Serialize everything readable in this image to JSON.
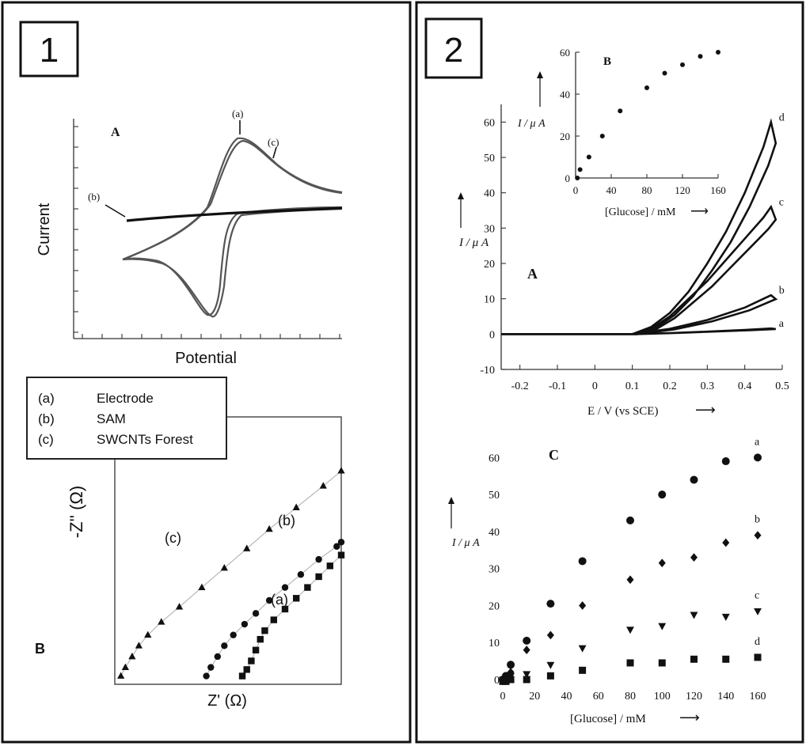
{
  "panel_labels": [
    "1",
    "2"
  ],
  "chart_data": [
    {
      "id": "cv",
      "type": "line",
      "title": "A",
      "xlabel": "Potential",
      "ylabel": "Current",
      "series": [
        {
          "name": "(a)",
          "description_visible": false
        },
        {
          "name": "(b)"
        },
        {
          "name": "(c)"
        }
      ]
    },
    {
      "id": "nyquist",
      "type": "scatter",
      "title": "B",
      "xlabel": "Z' (Ω)",
      "ylabel": "-Z'' (Ω)",
      "legend": {
        "placement": "top-left",
        "items": [
          {
            "key": "(a)",
            "label": "Electrode"
          },
          {
            "key": "(b)",
            "label": "SAM"
          },
          {
            "key": "(c)",
            "label": "SWCNTs Forest"
          }
        ]
      },
      "annotations": [
        "(a)",
        "(b)",
        "(c)"
      ],
      "series": [
        {
          "name": "(a)",
          "marker": "square",
          "x": [
            0.56,
            0.58,
            0.6,
            0.62,
            0.64,
            0.66,
            0.7,
            0.75,
            0.8,
            0.85,
            0.9,
            0.95,
            1.0
          ],
          "y": [
            0.02,
            0.05,
            0.09,
            0.14,
            0.19,
            0.23,
            0.28,
            0.33,
            0.38,
            0.43,
            0.48,
            0.53,
            0.58
          ]
        },
        {
          "name": "(b)",
          "marker": "triangle",
          "x": [
            0.02,
            0.04,
            0.07,
            0.1,
            0.14,
            0.2,
            0.28,
            0.38,
            0.48,
            0.58,
            0.68,
            0.8,
            0.92,
            1.0
          ],
          "y": [
            0.02,
            0.06,
            0.11,
            0.16,
            0.21,
            0.27,
            0.34,
            0.43,
            0.52,
            0.61,
            0.7,
            0.8,
            0.9,
            0.97
          ]
        },
        {
          "name": "(c)",
          "marker": "circle",
          "x": [
            0.4,
            0.42,
            0.45,
            0.48,
            0.52,
            0.57,
            0.62,
            0.68,
            0.75,
            0.82,
            0.9,
            0.98,
            1.0
          ],
          "y": [
            0.02,
            0.06,
            0.11,
            0.16,
            0.21,
            0.26,
            0.31,
            0.37,
            0.43,
            0.49,
            0.56,
            0.62,
            0.64
          ]
        }
      ]
    },
    {
      "id": "amperometry-A",
      "type": "line",
      "title": "A",
      "xlabel": "E / V (vs SCE)",
      "ylabel": "I / μ A",
      "xlim": [
        -0.25,
        0.5
      ],
      "ylim": [
        -10,
        65
      ],
      "xticks": [
        "-0.2",
        "-0.1",
        "0",
        "0.1",
        "0.2",
        "0.3",
        "0.4",
        "0.5"
      ],
      "yticks": [
        "-10",
        "0",
        "10",
        "20",
        "30",
        "40",
        "50",
        "60"
      ],
      "series": [
        {
          "name": "a",
          "x": [
            -0.25,
            0.1,
            0.2,
            0.3,
            0.4,
            0.47
          ],
          "y": [
            0,
            0,
            0.3,
            0.7,
            1.2,
            1.6
          ]
        },
        {
          "name": "b",
          "x": [
            -0.25,
            0.1,
            0.2,
            0.3,
            0.4,
            0.47
          ],
          "y": [
            0,
            0,
            1.5,
            4,
            7.5,
            11
          ]
        },
        {
          "name": "c",
          "x": [
            -0.25,
            0.1,
            0.15,
            0.2,
            0.25,
            0.3,
            0.35,
            0.4,
            0.45,
            0.47
          ],
          "y": [
            0,
            0,
            1.5,
            5,
            10,
            15,
            21,
            27,
            33,
            36
          ]
        },
        {
          "name": "d",
          "x": [
            -0.25,
            0.1,
            0.15,
            0.2,
            0.25,
            0.3,
            0.35,
            0.4,
            0.45,
            0.47
          ],
          "y": [
            0,
            0,
            2,
            6,
            12,
            20,
            29,
            40,
            53,
            60
          ]
        }
      ]
    },
    {
      "id": "amperometry-B",
      "type": "scatter",
      "title": "B",
      "xlabel": "[Glucose] / mM",
      "ylabel": "I / μ A",
      "xlim": [
        0,
        160
      ],
      "ylim": [
        0,
        60
      ],
      "xticks": [
        "0",
        "40",
        "80",
        "120",
        "160"
      ],
      "yticks": [
        "0",
        "20",
        "40",
        "60"
      ],
      "x": [
        2,
        5,
        15,
        30,
        50,
        80,
        100,
        120,
        140,
        160
      ],
      "y": [
        0,
        4,
        10,
        20,
        32,
        43,
        50,
        54,
        58,
        60
      ]
    },
    {
      "id": "amperometry-C",
      "type": "scatter",
      "title": "C",
      "xlabel": "[Glucose] / mM",
      "ylabel": "I / μ A",
      "xlim": [
        0,
        160
      ],
      "ylim": [
        -2,
        65
      ],
      "xticks": [
        "0",
        "20",
        "40",
        "60",
        "80",
        "100",
        "120",
        "140",
        "160"
      ],
      "yticks": [
        "0",
        "10",
        "20",
        "30",
        "40",
        "50",
        "60"
      ],
      "x": [
        0,
        2,
        5,
        15,
        30,
        50,
        80,
        100,
        120,
        140,
        160
      ],
      "series": [
        {
          "name": "a",
          "marker": "circle",
          "values": [
            0,
            1,
            4,
            10.5,
            20.5,
            32,
            43,
            50,
            54,
            59,
            60
          ]
        },
        {
          "name": "b",
          "marker": "diamond",
          "values": [
            0,
            0.5,
            2,
            8,
            12,
            20,
            27,
            31.5,
            33,
            37,
            39
          ]
        },
        {
          "name": "c",
          "marker": "triangle-down",
          "values": [
            0,
            0,
            1,
            1.5,
            4,
            8.5,
            13.5,
            14.5,
            17.5,
            17,
            18.5
          ]
        },
        {
          "name": "d",
          "marker": "square",
          "values": [
            -0.5,
            -0.5,
            0,
            0,
            1,
            2.5,
            4.5,
            4.5,
            5.5,
            5.5,
            6
          ]
        }
      ]
    }
  ],
  "arrows": {
    "arrow_right": "⟶"
  }
}
